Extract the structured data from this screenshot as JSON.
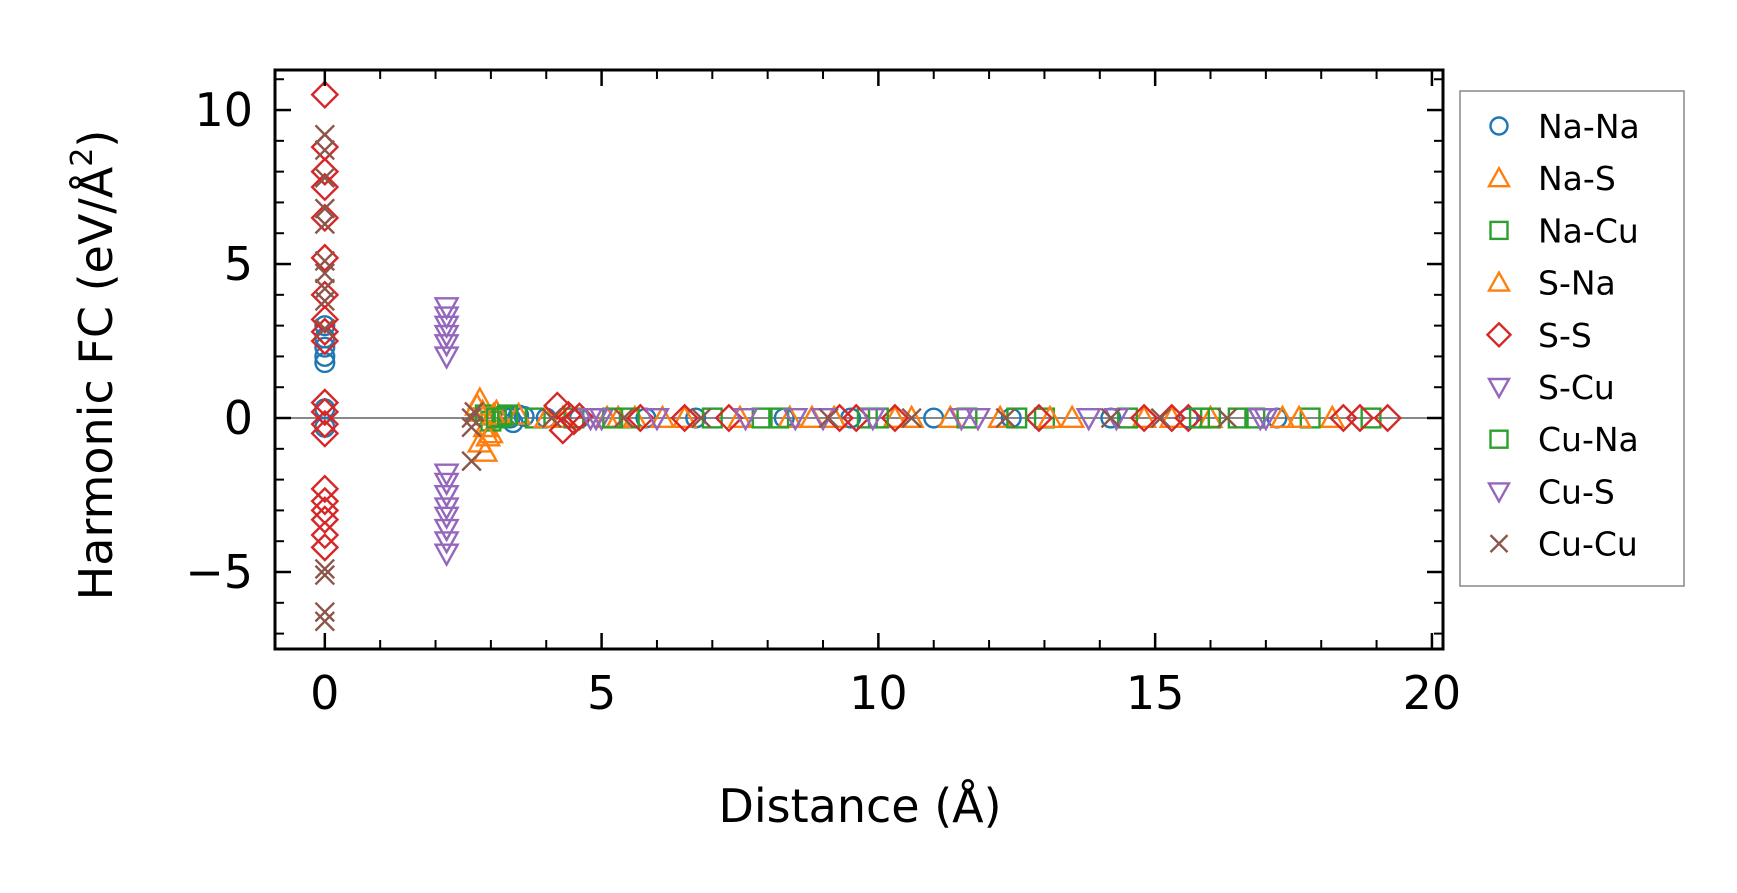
{
  "chart_data": {
    "type": "scatter",
    "title": "",
    "xlabel": "Distance (Å)",
    "ylabel": "Harmonic FC (eV/Å²)",
    "ylabel_main": "Harmonic FC (eV/Å",
    "ylabel_sup": "2",
    "ylabel_close": ")",
    "xlim": [
      -0.9,
      20.2
    ],
    "ylim": [
      -7.5,
      11.3
    ],
    "xticks": [
      0,
      5,
      10,
      15,
      20
    ],
    "xtick_labels": [
      "0",
      "5",
      "10",
      "15",
      "20"
    ],
    "yticks": [
      -5,
      0,
      5,
      10
    ],
    "ytick_labels": [
      "−5",
      "0",
      "5",
      "10"
    ],
    "grid": false,
    "zero_line": true,
    "legend_position": "outside-right",
    "series": [
      {
        "name": "Na-Na",
        "marker": "circle",
        "color": "#1f77b4",
        "points": [
          [
            0,
            1.8
          ],
          [
            0,
            2.0
          ],
          [
            0,
            2.3
          ],
          [
            0,
            2.6
          ],
          [
            0,
            3.0
          ],
          [
            0,
            -0.3
          ],
          [
            0,
            0.3
          ],
          [
            3.35,
            0.0
          ],
          [
            3.4,
            -0.15
          ],
          [
            3.5,
            0.1
          ],
          [
            3.6,
            0.05
          ],
          [
            4.0,
            0.0
          ],
          [
            4.6,
            0.0
          ],
          [
            5.8,
            0.0
          ],
          [
            6.7,
            0.0
          ],
          [
            8.3,
            0.0
          ],
          [
            9.5,
            0.0
          ],
          [
            11.0,
            0.0
          ],
          [
            12.4,
            0.0
          ],
          [
            14.2,
            0.0
          ],
          [
            15.6,
            0.0
          ],
          [
            17.2,
            0.0
          ]
        ]
      },
      {
        "name": "Na-S",
        "marker": "triangle-up",
        "color": "#ff7f0e",
        "points": [
          [
            2.8,
            0.6
          ],
          [
            2.85,
            0.2
          ],
          [
            2.9,
            -0.3
          ],
          [
            2.8,
            -0.8
          ],
          [
            2.9,
            -1.1
          ],
          [
            3.0,
            -0.5
          ],
          [
            3.1,
            0.2
          ],
          [
            3.5,
            0.1
          ],
          [
            4.3,
            0.0
          ],
          [
            5.1,
            0.0
          ],
          [
            5.6,
            0.0
          ],
          [
            6.5,
            0.0
          ],
          [
            7.5,
            0.0
          ],
          [
            8.4,
            0.0
          ],
          [
            9.2,
            0.0
          ],
          [
            10.3,
            0.0
          ],
          [
            11.3,
            0.0
          ],
          [
            12.2,
            0.0
          ],
          [
            13.5,
            0.0
          ],
          [
            14.8,
            0.0
          ],
          [
            16.0,
            0.0
          ],
          [
            17.3,
            0.0
          ],
          [
            18.2,
            0.0
          ]
        ]
      },
      {
        "name": "Na-Cu",
        "marker": "square",
        "color": "#2ca02c",
        "points": [
          [
            2.9,
            0.1
          ],
          [
            3.0,
            -0.1
          ],
          [
            3.2,
            0.05
          ],
          [
            3.8,
            0.0
          ],
          [
            4.5,
            0.0
          ],
          [
            5.5,
            0.0
          ],
          [
            7.0,
            0.0
          ],
          [
            8.2,
            0.0
          ],
          [
            9.8,
            0.0
          ],
          [
            11.6,
            0.0
          ],
          [
            13.0,
            0.0
          ],
          [
            14.5,
            0.0
          ],
          [
            16.0,
            0.0
          ],
          [
            16.8,
            0.0
          ],
          [
            17.8,
            0.0
          ],
          [
            18.9,
            0.0
          ]
        ]
      },
      {
        "name": "S-Na",
        "marker": "triangle-up",
        "color": "#ff7f0e",
        "points": [
          [
            2.75,
            0.4
          ],
          [
            2.95,
            -0.6
          ],
          [
            3.05,
            0.1
          ],
          [
            4.0,
            0.0
          ],
          [
            5.3,
            0.0
          ],
          [
            6.1,
            0.0
          ],
          [
            8.8,
            0.0
          ],
          [
            10.6,
            0.0
          ],
          [
            13.1,
            0.0
          ],
          [
            15.3,
            0.0
          ],
          [
            17.6,
            0.0
          ]
        ]
      },
      {
        "name": "S-S",
        "marker": "diamond",
        "color": "#d62728",
        "points": [
          [
            0,
            10.5
          ],
          [
            0,
            8.8
          ],
          [
            0,
            8.0
          ],
          [
            0,
            7.5
          ],
          [
            0,
            6.5
          ],
          [
            0,
            5.2
          ],
          [
            0,
            4.0
          ],
          [
            0,
            3.2
          ],
          [
            0,
            2.8
          ],
          [
            0,
            2.5
          ],
          [
            0,
            0.5
          ],
          [
            0,
            0.2
          ],
          [
            0,
            -0.2
          ],
          [
            0,
            -0.5
          ],
          [
            0,
            -2.3
          ],
          [
            0,
            -2.7
          ],
          [
            0,
            -3.0
          ],
          [
            0,
            -3.3
          ],
          [
            0,
            -3.8
          ],
          [
            0,
            -4.2
          ],
          [
            4.2,
            0.4
          ],
          [
            4.3,
            -0.4
          ],
          [
            4.4,
            0.1
          ],
          [
            4.5,
            -0.1
          ],
          [
            4.6,
            0.05
          ],
          [
            5.7,
            0.0
          ],
          [
            6.5,
            0.0
          ],
          [
            7.3,
            0.0
          ],
          [
            9.3,
            0.0
          ],
          [
            9.6,
            0.0
          ],
          [
            10.3,
            0.0
          ],
          [
            12.9,
            0.0
          ],
          [
            14.8,
            0.0
          ],
          [
            15.3,
            0.0
          ],
          [
            15.6,
            0.0
          ],
          [
            18.4,
            0.0
          ],
          [
            18.7,
            0.0
          ],
          [
            19.2,
            0.0
          ]
        ]
      },
      {
        "name": "S-Cu",
        "marker": "triangle-down",
        "color": "#9467bd",
        "points": [
          [
            2.2,
            3.6
          ],
          [
            2.2,
            3.3
          ],
          [
            2.2,
            3.0
          ],
          [
            2.2,
            2.7
          ],
          [
            2.2,
            2.4
          ],
          [
            2.2,
            2.0
          ],
          [
            2.2,
            -1.8
          ],
          [
            2.2,
            -2.1
          ],
          [
            2.2,
            -2.5
          ],
          [
            2.2,
            -2.9
          ],
          [
            2.2,
            -3.2
          ],
          [
            2.2,
            -3.6
          ],
          [
            2.2,
            -4.0
          ],
          [
            2.2,
            -4.4
          ],
          [
            4.8,
            0.0
          ],
          [
            5.0,
            0.0
          ],
          [
            6.0,
            0.0
          ],
          [
            8.5,
            0.0
          ],
          [
            9.0,
            0.0
          ],
          [
            11.8,
            0.0
          ],
          [
            14.3,
            0.0
          ],
          [
            17.0,
            0.0
          ]
        ]
      },
      {
        "name": "Cu-Na",
        "marker": "square",
        "color": "#2ca02c",
        "points": [
          [
            3.1,
            0.0
          ],
          [
            3.3,
            0.1
          ],
          [
            5.2,
            0.0
          ],
          [
            7.9,
            0.0
          ],
          [
            10.0,
            0.0
          ],
          [
            12.5,
            0.0
          ],
          [
            15.8,
            0.0
          ],
          [
            16.5,
            0.0
          ]
        ]
      },
      {
        "name": "Cu-S",
        "marker": "triangle-down",
        "color": "#9467bd",
        "points": [
          [
            4.9,
            0.0
          ],
          [
            7.6,
            0.0
          ],
          [
            9.9,
            0.0
          ],
          [
            11.5,
            0.0
          ],
          [
            13.8,
            0.0
          ],
          [
            16.9,
            0.0
          ]
        ]
      },
      {
        "name": "Cu-Cu",
        "marker": "x",
        "color": "#8c564b",
        "points": [
          [
            0,
            9.2
          ],
          [
            0,
            8.7
          ],
          [
            0,
            7.8
          ],
          [
            0,
            6.8
          ],
          [
            0,
            6.3
          ],
          [
            0,
            5.1
          ],
          [
            0,
            4.7
          ],
          [
            0,
            4.2
          ],
          [
            0,
            3.8
          ],
          [
            0,
            2.9
          ],
          [
            0,
            -4.9
          ],
          [
            0,
            -5.1
          ],
          [
            0,
            -6.3
          ],
          [
            0,
            -6.6
          ],
          [
            2.65,
            0.0
          ],
          [
            2.65,
            -0.3
          ],
          [
            2.65,
            -1.4
          ],
          [
            2.7,
            0.2
          ],
          [
            4.1,
            0.0
          ],
          [
            5.4,
            0.0
          ],
          [
            6.8,
            0.0
          ],
          [
            9.1,
            0.0
          ],
          [
            10.6,
            0.0
          ],
          [
            12.3,
            0.0
          ],
          [
            14.2,
            0.0
          ],
          [
            15.1,
            0.0
          ],
          [
            16.3,
            0.0
          ]
        ]
      }
    ]
  }
}
